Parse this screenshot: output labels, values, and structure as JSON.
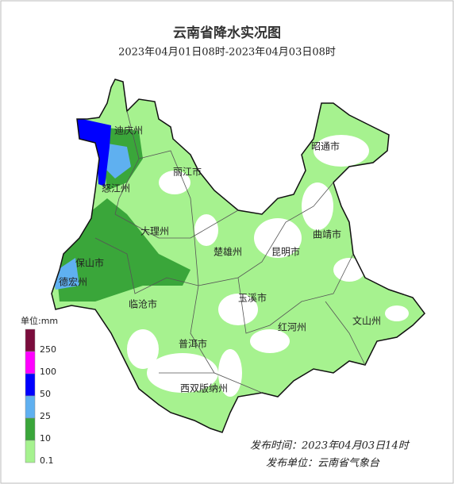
{
  "title": "云南省降水实况图",
  "subtitle": "2023年04月01日08时-2023年04月03日08时",
  "regions": [
    "迪庆州",
    "昭通市",
    "丽江市",
    "怒江州",
    "曲靖市",
    "大理州",
    "保山市",
    "楚雄州",
    "昆明市",
    "德宏州",
    "临沧市",
    "玉溪市",
    "红河州",
    "文山州",
    "普洱市",
    "西双版纳州"
  ],
  "legend": {
    "unit": "单位:mm",
    "items": [
      {
        "label": 250,
        "color": "#7a0c3c"
      },
      {
        "label": 100,
        "color": "#ff00ff"
      },
      {
        "label": 50,
        "color": "#0000ff"
      },
      {
        "label": 25,
        "color": "#5fb0f0"
      },
      {
        "label": 10,
        "color": "#3aa63a"
      },
      {
        "label": 0.1,
        "color": "#a6f28f"
      }
    ]
  },
  "footer": {
    "time": "发布时间：2023年04月03日14时",
    "unit": "发布单位：云南省气象台"
  }
}
